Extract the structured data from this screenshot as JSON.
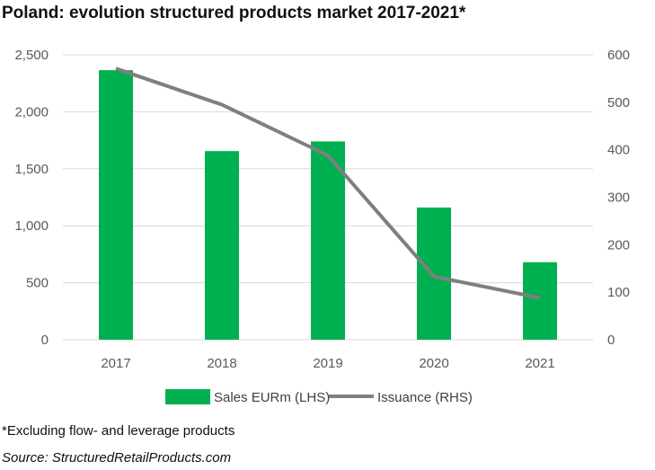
{
  "title": "Poland: evolution structured products market 2017-2021*",
  "footnote": "*Excluding flow- and leverage products",
  "source": "Source: StructuredRetailProducts.com",
  "colors": {
    "bars": "#00b050",
    "line": "#7f7f7f",
    "grid": "#d9d9d9",
    "tick_text": "#595959"
  },
  "chart_data": {
    "type": "bar",
    "categories": [
      "2017",
      "2018",
      "2019",
      "2020",
      "2021"
    ],
    "series": [
      {
        "name": "Sales EURm (LHS)",
        "type": "bar",
        "axis": "left",
        "values": [
          2365,
          1655,
          1740,
          1160,
          680
        ]
      },
      {
        "name": "Issuance (RHS)",
        "type": "line",
        "axis": "right",
        "values": [
          571,
          495,
          388,
          133,
          88
        ]
      }
    ],
    "left_axis": {
      "min": 0,
      "max": 2500,
      "ticks": [
        "0",
        "500",
        "1,000",
        "1,500",
        "2,000",
        "2,500"
      ]
    },
    "right_axis": {
      "min": 0,
      "max": 600,
      "ticks": [
        "0",
        "100",
        "200",
        "300",
        "400",
        "500",
        "600"
      ]
    },
    "grid": true,
    "legend_position": "bottom",
    "legend": [
      "Sales EURm (LHS)",
      "Issuance (RHS)"
    ]
  }
}
